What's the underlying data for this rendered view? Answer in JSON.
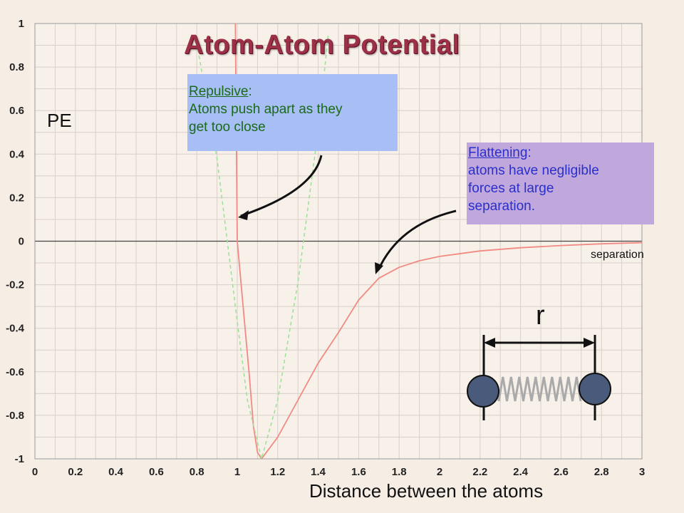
{
  "chart_data": {
    "type": "line",
    "title": "Atom-Atom Potential",
    "xlabel": "Distance between the atoms",
    "ylabel": "PE",
    "xlim": [
      0,
      3
    ],
    "ylim": [
      -1,
      1
    ],
    "x_ticks": [
      "0",
      "0.2",
      "0.4",
      "0.6",
      "0.8",
      "1",
      "1.2",
      "1.4",
      "1.6",
      "1.8",
      "2",
      "2.2",
      "2.4",
      "2.6",
      "2.8",
      "3"
    ],
    "y_ticks": [
      "1",
      "0.8",
      "0.6",
      "0.4",
      "0.2",
      "0",
      "-0.2",
      "-0.4",
      "-0.6",
      "-0.8",
      "-1"
    ],
    "grid": true,
    "series": [
      {
        "style": "solid",
        "color": "#f08a82",
        "points": [
          [
            1.05,
            -0.5
          ],
          [
            1.0,
            0.0
          ],
          [
            1.06,
            -0.62
          ],
          [
            1.08,
            -0.85
          ],
          [
            1.1,
            -0.97
          ],
          [
            1.12,
            -1.0
          ],
          [
            1.2,
            -0.9
          ],
          [
            1.3,
            -0.73
          ],
          [
            1.4,
            -0.56
          ],
          [
            1.5,
            -0.42
          ],
          [
            1.6,
            -0.27
          ],
          [
            1.7,
            -0.17
          ],
          [
            1.8,
            -0.12
          ],
          [
            1.9,
            -0.09
          ],
          [
            2.0,
            -0.07
          ],
          [
            2.2,
            -0.045
          ],
          [
            2.4,
            -0.03
          ],
          [
            2.6,
            -0.02
          ],
          [
            2.8,
            -0.012
          ],
          [
            3.0,
            -0.007
          ]
        ]
      },
      {
        "style": "dashed",
        "color": "#9ee29a",
        "points": [
          [
            0.8,
            0.91
          ],
          [
            0.9,
            0.38
          ],
          [
            1.0,
            -0.37
          ],
          [
            1.05,
            -0.73
          ],
          [
            1.12,
            -1.0
          ],
          [
            1.2,
            -0.73
          ],
          [
            1.3,
            -0.19
          ],
          [
            1.4,
            0.51
          ],
          [
            1.45,
            0.95
          ]
        ]
      }
    ],
    "annotations": {
      "repulsive_head": "Repulsive",
      "repulsive_colon": ":",
      "repulsive_body1": "Atoms push apart as they",
      "repulsive_body2": "get too close",
      "flattening_head": "Flattening",
      "flattening_colon": ":",
      "flattening_body1": "atoms have negligible",
      "flattening_body2": "forces at large",
      "flattening_body3": "separation.",
      "separation_label": "separation",
      "r_label": "r"
    }
  },
  "colors": {
    "background": "#f6eee5",
    "grid": "#d8d0c8",
    "title": "#9c3048",
    "repulsive_box": "#a8bff5",
    "repulsive_text": "#1a6a1a",
    "flattening_box": "#c0a8dd",
    "flattening_text": "#2a2fc9",
    "atom": "#4a5a7a"
  }
}
